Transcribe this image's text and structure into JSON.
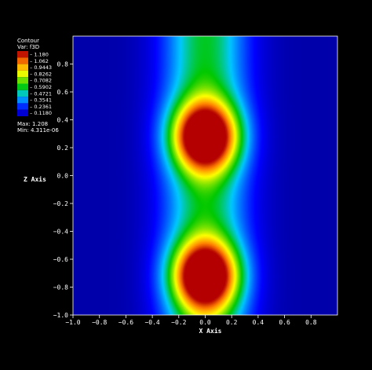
{
  "chart_data": {
    "type": "heatmap",
    "title": "",
    "xlabel": "X Axis",
    "ylabel": "Z Axis",
    "xlim": [
      -1.0,
      1.0
    ],
    "ylim": [
      -1.0,
      1.0
    ],
    "x_ticks": [
      "-1.0",
      "-0.8",
      "-0.6",
      "-0.4",
      "-0.2",
      "0.0",
      "0.2",
      "0.4",
      "0.6",
      "0.8"
    ],
    "y_ticks": [
      "-1.0",
      "-0.8",
      "-0.6",
      "-0.4",
      "-0.2",
      "0.0",
      "0.2",
      "0.4",
      "0.6",
      "0.8"
    ],
    "legend": {
      "title": "Contour",
      "var": "Var: f3D",
      "levels": [
        "1.180",
        "1.062",
        "0.9443",
        "0.8262",
        "0.7082",
        "0.5902",
        "0.4721",
        "0.3541",
        "0.2361",
        "0.1180"
      ],
      "max_label": "Max: 1.208",
      "min_label": "Min: 4.311e-06"
    },
    "peaks": [
      {
        "x": 0.0,
        "z": 0.28,
        "value": 1.208
      },
      {
        "x": 0.0,
        "z": -0.72,
        "value": 1.208
      }
    ]
  }
}
